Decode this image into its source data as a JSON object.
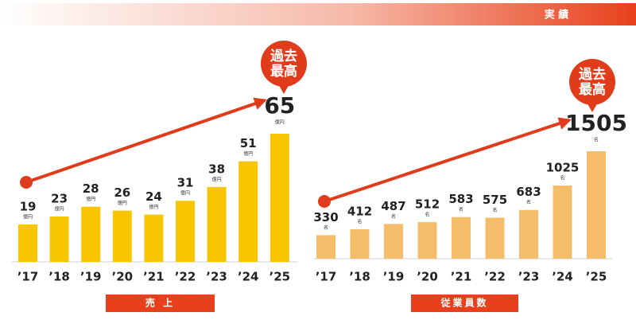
{
  "header": {
    "title": "実 績"
  },
  "chart_data": [
    {
      "type": "bar",
      "title": "売 上",
      "unit": "億円",
      "badge": [
        "過去",
        "最高"
      ],
      "color": "#f7c600",
      "categories": [
        "’17",
        "’18",
        "’19",
        "’20",
        "’21",
        "’22",
        "’23",
        "’24",
        "’25"
      ],
      "values": [
        19,
        23,
        28,
        26,
        24,
        31,
        38,
        51,
        65
      ]
    },
    {
      "type": "bar",
      "title": "従業員数",
      "unit": "名",
      "badge": [
        "過去",
        "最高"
      ],
      "color": "#f5bd6a",
      "categories": [
        "’17",
        "’18",
        "’19",
        "’20",
        "’21",
        "’22",
        "’23",
        "’24",
        "’25"
      ],
      "values": [
        330,
        412,
        487,
        512,
        583,
        575,
        683,
        1025,
        1505
      ]
    }
  ]
}
